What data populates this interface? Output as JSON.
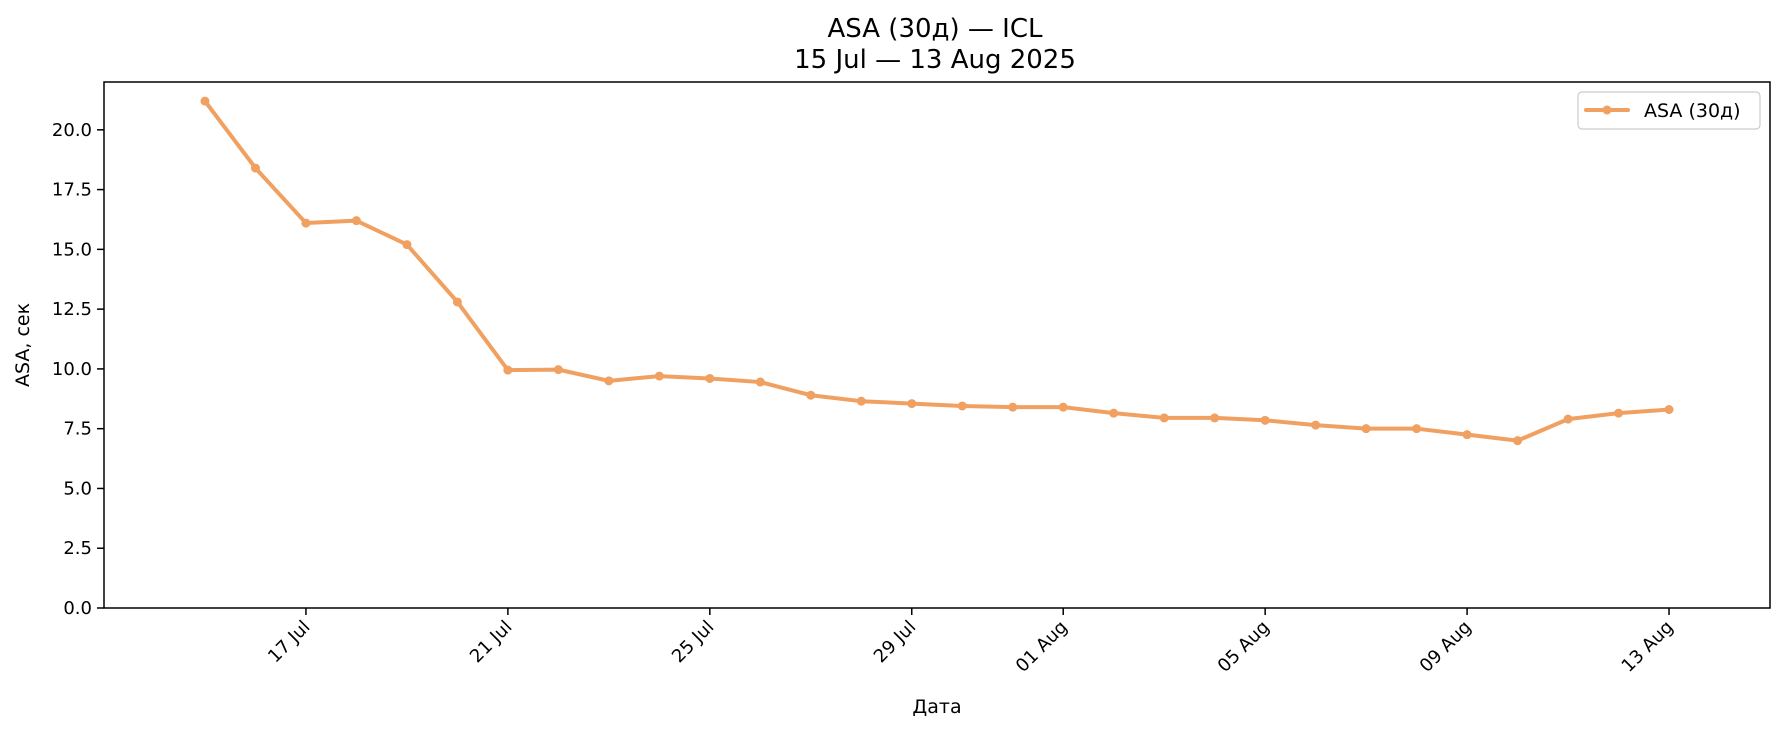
{
  "chart_data": {
    "type": "line",
    "title": "ASA (30д) — ICL",
    "subtitle": "15 Jul — 13 Aug 2025",
    "xlabel": "Дата",
    "ylabel": "ASA, сек",
    "ylim": [
      0,
      22
    ],
    "yticks": [
      0.0,
      2.5,
      5.0,
      7.5,
      10.0,
      12.5,
      15.0,
      17.5,
      20.0
    ],
    "ytick_labels": [
      "0.0",
      "2.5",
      "5.0",
      "7.5",
      "10.0",
      "12.5",
      "15.0",
      "17.5",
      "20.0"
    ],
    "xlim": [
      "2025-07-13",
      "2025-08-15"
    ],
    "xticks": [
      "2025-07-17",
      "2025-07-21",
      "2025-07-25",
      "2025-07-29",
      "2025-08-01",
      "2025-08-05",
      "2025-08-09",
      "2025-08-13"
    ],
    "xtick_labels": [
      "17 Jul",
      "21 Jul",
      "25 Jul",
      "29 Jul",
      "01 Aug",
      "05 Aug",
      "09 Aug",
      "13 Aug"
    ],
    "grid": false,
    "legend_position": "top-right",
    "color": "#f0a060",
    "series": [
      {
        "name": "ASA (30д)",
        "x": [
          "2025-07-15",
          "2025-07-16",
          "2025-07-17",
          "2025-07-18",
          "2025-07-19",
          "2025-07-20",
          "2025-07-21",
          "2025-07-22",
          "2025-07-23",
          "2025-07-24",
          "2025-07-25",
          "2025-07-26",
          "2025-07-27",
          "2025-07-28",
          "2025-07-29",
          "2025-07-30",
          "2025-07-31",
          "2025-08-01",
          "2025-08-02",
          "2025-08-03",
          "2025-08-04",
          "2025-08-05",
          "2025-08-06",
          "2025-08-07",
          "2025-08-08",
          "2025-08-09",
          "2025-08-10",
          "2025-08-11",
          "2025-08-12",
          "2025-08-13"
        ],
        "y": [
          21.2,
          18.4,
          16.1,
          16.2,
          15.2,
          12.8,
          9.95,
          9.97,
          9.5,
          9.7,
          9.6,
          9.45,
          8.9,
          8.65,
          8.55,
          8.45,
          8.4,
          8.4,
          8.15,
          7.95,
          7.95,
          7.85,
          7.65,
          7.5,
          7.5,
          7.25,
          7.0,
          7.9,
          8.15,
          8.3
        ]
      }
    ]
  }
}
